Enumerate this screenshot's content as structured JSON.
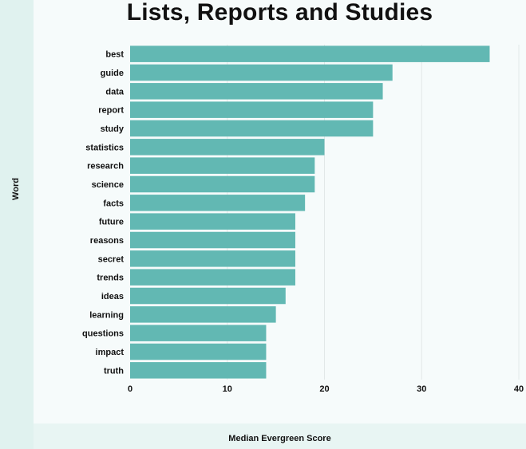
{
  "chart_data": {
    "type": "bar",
    "orientation": "horizontal",
    "title": "Lists, Reports and Studies",
    "xlabel": "Median Evergreen Score",
    "ylabel": "Word",
    "categories": [
      "best",
      "guide",
      "data",
      "report",
      "study",
      "statistics",
      "research",
      "science",
      "facts",
      "future",
      "reasons",
      "secret",
      "trends",
      "ideas",
      "learning",
      "questions",
      "impact",
      "truth"
    ],
    "values": [
      37,
      27,
      26,
      25,
      25,
      20,
      19,
      19,
      18,
      17,
      17,
      17,
      17,
      16,
      15,
      14,
      14,
      14
    ],
    "xlim": [
      0,
      40
    ],
    "xticks": [
      0,
      10,
      20,
      30,
      40
    ],
    "grid": "vertical",
    "bar_color": "#62b8b3"
  }
}
